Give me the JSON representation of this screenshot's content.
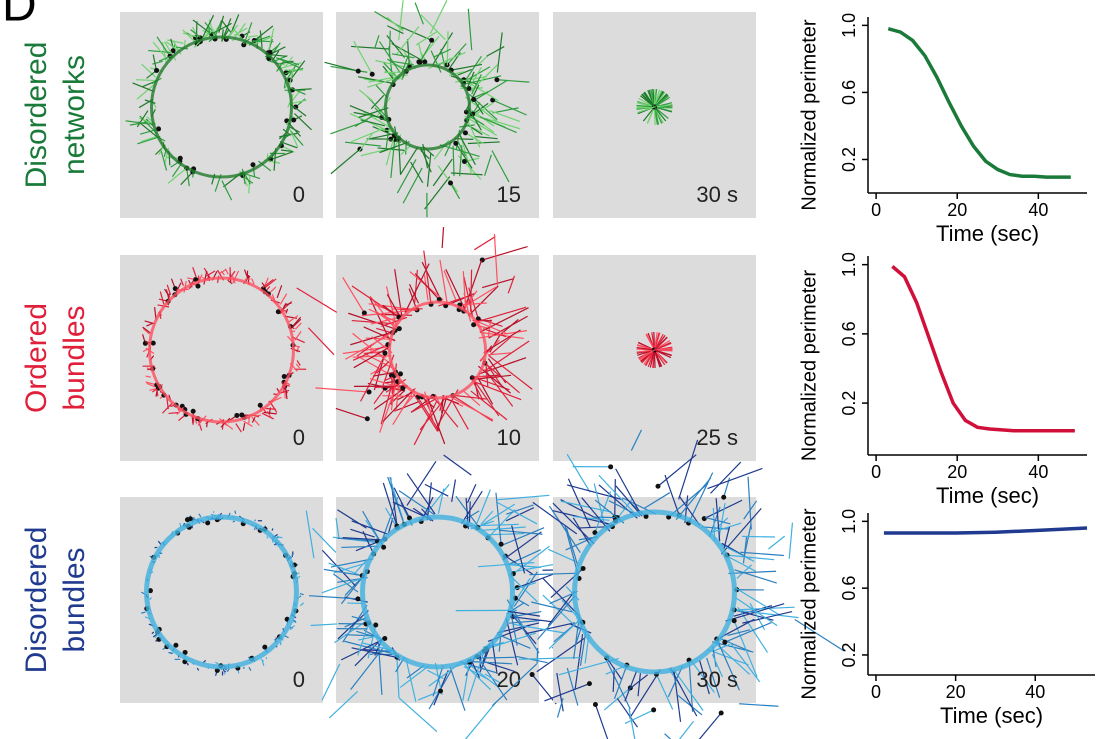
{
  "panel_label": "D",
  "rows": [
    {
      "label": [
        "Disordered",
        "networks"
      ],
      "color": "#1a7a3a",
      "times": [
        "0",
        "15",
        "30 s"
      ]
    },
    {
      "label": [
        "Ordered",
        "bundles"
      ],
      "color": "#e0203a",
      "times": [
        "0",
        "10",
        "25 s"
      ]
    },
    {
      "label": [
        "Disordered",
        "bundles"
      ],
      "color": "#1f3a8f",
      "times": [
        "0",
        "20",
        "30 s"
      ]
    }
  ],
  "chart_data": [
    {
      "type": "line",
      "ylabel": "Normalized perimeter",
      "xlabel": "Time (sec)",
      "color": "#1a7a3a",
      "x": [
        3,
        6,
        9,
        12,
        15,
        18,
        21,
        24,
        27,
        30,
        33,
        36,
        39,
        42,
        45,
        48
      ],
      "values": [
        0.98,
        0.96,
        0.91,
        0.82,
        0.69,
        0.54,
        0.4,
        0.28,
        0.19,
        0.14,
        0.11,
        0.1,
        0.1,
        0.095,
        0.095,
        0.095
      ],
      "xlim": [
        -2,
        52
      ],
      "ylim": [
        0,
        1.05
      ],
      "xticks": [
        0,
        20,
        40
      ],
      "yticks": [
        0.2,
        0.6,
        {
          "value": 1,
          "label": "1.0"
        }
      ]
    },
    {
      "type": "line",
      "ylabel": "Normalized perimeter",
      "xlabel": "Time (sec)",
      "color": "#d0103a",
      "x": [
        4,
        7,
        10,
        13,
        16,
        19,
        22,
        25,
        28,
        31,
        34,
        37,
        40,
        43,
        46,
        49
      ],
      "values": [
        0.99,
        0.93,
        0.78,
        0.58,
        0.38,
        0.2,
        0.1,
        0.06,
        0.05,
        0.045,
        0.04,
        0.04,
        0.04,
        0.04,
        0.04,
        0.04
      ],
      "xlim": [
        -2,
        52
      ],
      "ylim": [
        -0.1,
        1.05
      ],
      "xticks": [
        0,
        20,
        40
      ],
      "yticks": [
        0.2,
        0.6,
        {
          "value": 1,
          "label": "1.0"
        }
      ]
    },
    {
      "type": "line",
      "ylabel": "Normalized perimeter",
      "xlabel": "Time (sec)",
      "color": "#1f3a8f",
      "x": [
        2,
        10,
        20,
        30,
        40,
        53
      ],
      "values": [
        0.93,
        0.93,
        0.93,
        0.935,
        0.945,
        0.96
      ],
      "xlim": [
        -2,
        55
      ],
      "ylim": [
        0.08,
        1.05
      ],
      "xticks": [
        0,
        20,
        40
      ],
      "yticks": [
        0.2,
        0.6,
        {
          "value": 1,
          "label": "1.0"
        }
      ]
    }
  ]
}
